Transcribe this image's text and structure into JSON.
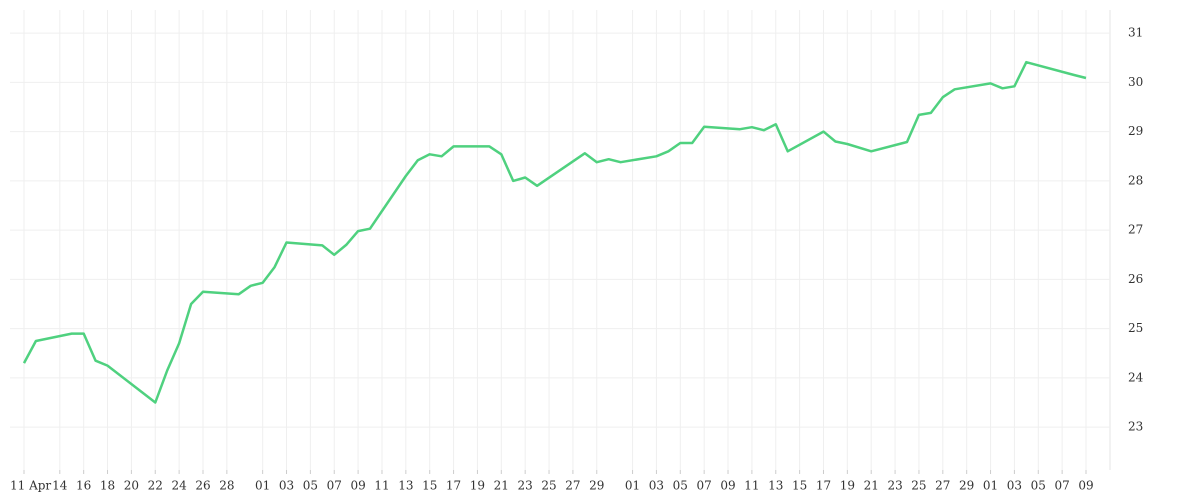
{
  "chart_data": {
    "type": "line",
    "color": "#4fd17f",
    "grid": true,
    "x": [
      "Apr 11",
      "Apr 12",
      "Apr 15",
      "Apr 16",
      "Apr 17",
      "Apr 18",
      "Apr 22",
      "Apr 23",
      "Apr 24",
      "Apr 25",
      "Apr 26",
      "Apr 29",
      "Apr 30",
      "May 01",
      "May 02",
      "May 03",
      "May 06",
      "May 07",
      "May 08",
      "May 09",
      "May 10",
      "May 13",
      "May 14",
      "May 15",
      "May 16",
      "May 17",
      "May 20",
      "May 21",
      "May 22",
      "May 23",
      "May 24",
      "May 28",
      "May 29",
      "May 30",
      "May 31",
      "Jun 03",
      "Jun 04",
      "Jun 05",
      "Jun 06",
      "Jun 07",
      "Jun 10",
      "Jun 11",
      "Jun 12",
      "Jun 13",
      "Jun 14",
      "Jun 17",
      "Jun 18",
      "Jun 19",
      "Jun 21",
      "Jun 24",
      "Jun 25",
      "Jun 26",
      "Jun 27",
      "Jun 28",
      "Jul 01",
      "Jul 02",
      "Jul 03",
      "Jul 04",
      "Jul 08",
      "Jul 09"
    ],
    "values": [
      24.3,
      24.75,
      24.9,
      24.9,
      24.35,
      24.25,
      23.5,
      24.15,
      24.7,
      25.5,
      25.75,
      25.7,
      25.87,
      25.93,
      26.25,
      26.75,
      26.69,
      26.5,
      26.7,
      26.98,
      27.03,
      28.1,
      28.42,
      28.54,
      28.5,
      28.7,
      28.7,
      28.54,
      28.0,
      28.07,
      27.9,
      28.56,
      28.38,
      28.44,
      28.38,
      28.5,
      28.6,
      28.77,
      28.77,
      29.1,
      29.05,
      29.09,
      29.03,
      29.15,
      28.6,
      29.0,
      28.8,
      28.75,
      28.6,
      28.79,
      29.34,
      29.38,
      29.7,
      29.86,
      29.98,
      29.88,
      29.92,
      30.41,
      30.15,
      30.09
    ],
    "ylim": [
      22.13,
      31.47
    ],
    "yticks": [
      23,
      24,
      25,
      26,
      27,
      28,
      29,
      30,
      31
    ],
    "xticks": [
      {
        "value": "Apr 11",
        "label": "11 Apr"
      },
      {
        "value": "Apr 14",
        "label": "14"
      },
      {
        "value": "Apr 16",
        "label": "16"
      },
      {
        "value": "Apr 18",
        "label": "18"
      },
      {
        "value": "Apr 20",
        "label": "20"
      },
      {
        "value": "Apr 22",
        "label": "22"
      },
      {
        "value": "Apr 24",
        "label": "24"
      },
      {
        "value": "Apr 26",
        "label": "26"
      },
      {
        "value": "Apr 28",
        "label": "28"
      },
      {
        "value": "May 01",
        "label": "01"
      },
      {
        "value": "May 03",
        "label": "03"
      },
      {
        "value": "May 05",
        "label": "05"
      },
      {
        "value": "May 07",
        "label": "07"
      },
      {
        "value": "May 09",
        "label": "09"
      },
      {
        "value": "May 11",
        "label": "11"
      },
      {
        "value": "May 13",
        "label": "13"
      },
      {
        "value": "May 15",
        "label": "15"
      },
      {
        "value": "May 17",
        "label": "17"
      },
      {
        "value": "May 19",
        "label": "19"
      },
      {
        "value": "May 21",
        "label": "21"
      },
      {
        "value": "May 23",
        "label": "23"
      },
      {
        "value": "May 25",
        "label": "25"
      },
      {
        "value": "May 27",
        "label": "27"
      },
      {
        "value": "May 29",
        "label": "29"
      },
      {
        "value": "Jun 01",
        "label": "01"
      },
      {
        "value": "Jun 03",
        "label": "03"
      },
      {
        "value": "Jun 05",
        "label": "05"
      },
      {
        "value": "Jun 07",
        "label": "07"
      },
      {
        "value": "Jun 09",
        "label": "09"
      },
      {
        "value": "Jun 11",
        "label": "11"
      },
      {
        "value": "Jun 13",
        "label": "13"
      },
      {
        "value": "Jun 15",
        "label": "15"
      },
      {
        "value": "Jun 17",
        "label": "17"
      },
      {
        "value": "Jun 19",
        "label": "19"
      },
      {
        "value": "Jun 21",
        "label": "21"
      },
      {
        "value": "Jun 23",
        "label": "23"
      },
      {
        "value": "Jun 25",
        "label": "25"
      },
      {
        "value": "Jun 27",
        "label": "27"
      },
      {
        "value": "Jun 29",
        "label": "29"
      },
      {
        "value": "Jul 01",
        "label": "01"
      },
      {
        "value": "Jul 03",
        "label": "03"
      },
      {
        "value": "Jul 05",
        "label": "05"
      },
      {
        "value": "Jul 07",
        "label": "07"
      },
      {
        "value": "Jul 09",
        "label": "09"
      }
    ]
  }
}
